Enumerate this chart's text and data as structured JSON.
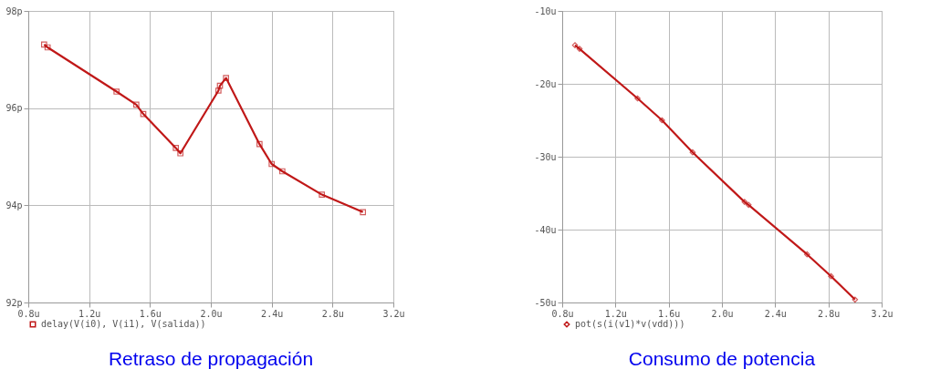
{
  "chart_data": [
    {
      "type": "line",
      "title": "Retraso de propagación",
      "xlim": [
        0.8,
        3.2
      ],
      "ylim": [
        92,
        98
      ],
      "xticks": [
        {
          "value": 0.8,
          "label": "0.8u"
        },
        {
          "value": 1.2,
          "label": "1.2u"
        },
        {
          "value": 1.6,
          "label": "1.6u"
        },
        {
          "value": 2.0,
          "label": "2.0u"
        },
        {
          "value": 2.4,
          "label": "2.4u"
        },
        {
          "value": 2.8,
          "label": "2.8u"
        },
        {
          "value": 3.2,
          "label": "3.2u"
        }
      ],
      "yticks": [
        {
          "value": 92,
          "label": "92p"
        },
        {
          "value": 94,
          "label": "94p"
        },
        {
          "value": 96,
          "label": "96p"
        },
        {
          "value": 98,
          "label": "98p"
        }
      ],
      "grid": true,
      "legend": "bottom",
      "marker": "square",
      "series": [
        {
          "name": "delay(V(i0), V(i1), V(salida))",
          "color": "#c01818",
          "x": [
            0.904,
            0.927,
            1.38,
            1.51,
            1.556,
            1.77,
            1.8,
            2.05,
            2.06,
            2.1,
            2.32,
            2.4,
            2.47,
            2.73,
            3.0
          ],
          "values": [
            97.31,
            97.25,
            96.34,
            96.07,
            95.88,
            95.18,
            95.07,
            96.36,
            96.46,
            96.62,
            95.26,
            94.85,
            94.7,
            94.22,
            93.86
          ]
        }
      ]
    },
    {
      "type": "line",
      "title": "Consumo de potencia",
      "xlim": [
        0.8,
        3.2
      ],
      "ylim": [
        -50,
        -10
      ],
      "xticks": [
        {
          "value": 0.8,
          "label": "0.8u"
        },
        {
          "value": 1.2,
          "label": "1.2u"
        },
        {
          "value": 1.6,
          "label": "1.6u"
        },
        {
          "value": 2.0,
          "label": "2.0u"
        },
        {
          "value": 2.4,
          "label": "2.4u"
        },
        {
          "value": 2.8,
          "label": "2.8u"
        },
        {
          "value": 3.2,
          "label": "3.2u"
        }
      ],
      "yticks": [
        {
          "value": -50,
          "label": "-50u"
        },
        {
          "value": -40,
          "label": "-40u"
        },
        {
          "value": -30,
          "label": "-30u"
        },
        {
          "value": -20,
          "label": "-20u"
        },
        {
          "value": -10,
          "label": "-10u"
        }
      ],
      "grid": true,
      "legend": "bottom",
      "marker": "diamond",
      "series": [
        {
          "name": "pot(s(i(v1)*v(vdd)))",
          "color": "#c01818",
          "x": [
            0.896,
            0.93,
            1.366,
            1.55,
            1.78,
            2.17,
            2.2,
            2.64,
            2.82,
            3.0
          ],
          "values": [
            -14.7,
            -15.2,
            -22.0,
            -25.0,
            -29.4,
            -36.2,
            -36.6,
            -43.4,
            -46.4,
            -49.6
          ]
        }
      ]
    }
  ]
}
